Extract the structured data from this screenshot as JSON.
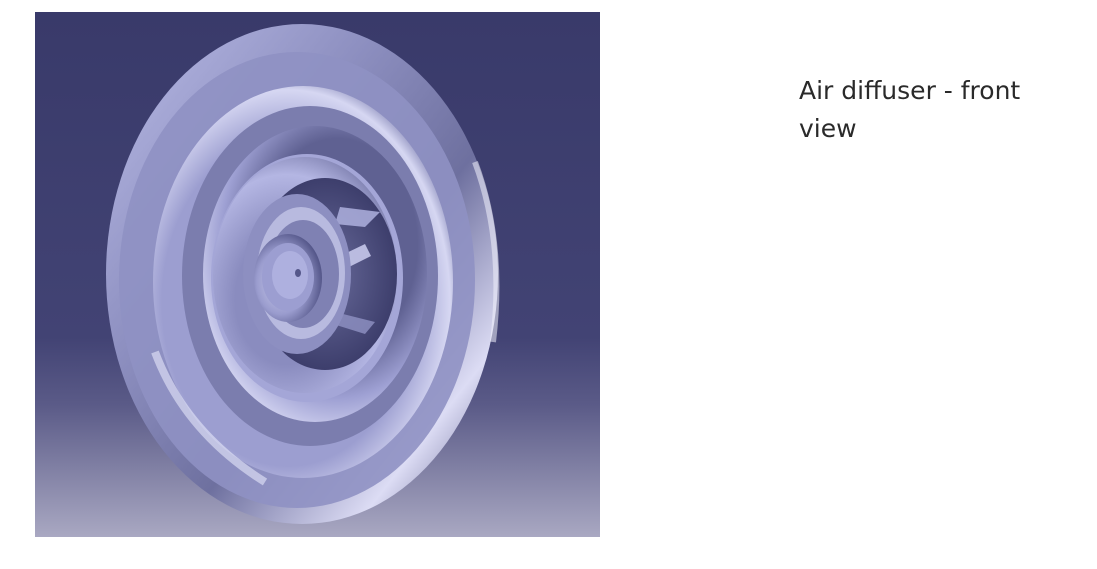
{
  "figure": {
    "caption": "Air diffuser - front view",
    "subject": "air-diffuser-3d-model",
    "background_colors": {
      "top": "#393a6a",
      "middle": "#4b4c7b",
      "bottom": "#a9a8c2"
    },
    "model_color": "#a7a9d6"
  }
}
